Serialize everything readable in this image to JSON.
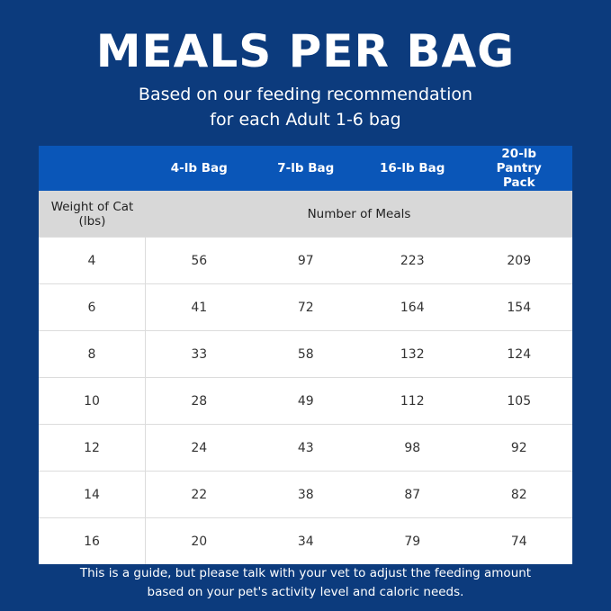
{
  "header": {
    "title": "MEALS PER BAG",
    "subtitle_lines": [
      "Based on our feeding recommendation",
      "for each Adult 1-6 bag"
    ]
  },
  "table": {
    "columns": [
      "4-lb Bag",
      "7-lb Bag",
      "16-lb Bag",
      "20-lb Pantry Pack"
    ],
    "row_header": "Weight of Cat (lbs)",
    "group_label": "Number of Meals",
    "rows": [
      [
        4,
        56,
        97,
        223,
        209
      ],
      [
        6,
        41,
        72,
        164,
        154
      ],
      [
        8,
        33,
        58,
        132,
        124
      ],
      [
        10,
        28,
        49,
        112,
        105
      ],
      [
        12,
        24,
        43,
        98,
        92
      ],
      [
        14,
        22,
        38,
        87,
        82
      ],
      [
        16,
        20,
        34,
        79,
        74
      ]
    ]
  },
  "footer": {
    "lines": [
      "This is a guide, but please talk with your vet to adjust the feeding amount",
      "based on your pet's activity level and caloric needs."
    ]
  }
}
